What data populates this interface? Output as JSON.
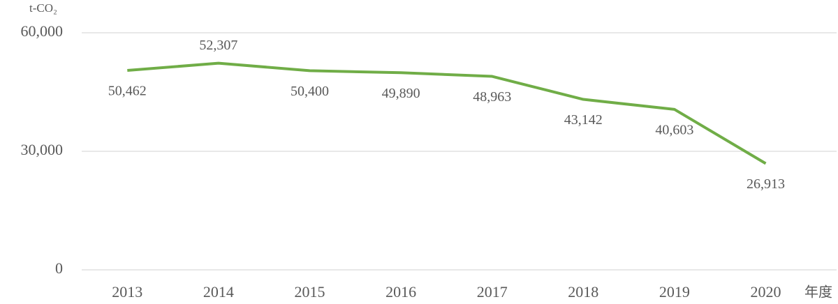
{
  "chart_data": {
    "type": "line",
    "y_axis_label": "t-CO₂",
    "x_axis_label": "年度",
    "categories": [
      "2013",
      "2014",
      "2015",
      "2016",
      "2017",
      "2018",
      "2019",
      "2020"
    ],
    "series": [
      {
        "color": "#70ad47",
        "values": [
          50462,
          52307,
          50400,
          49890,
          48963,
          43142,
          40603,
          26913
        ],
        "value_labels": [
          "50,462",
          "52,307",
          "50,400",
          "49,890",
          "48,963",
          "43,142",
          "40,603",
          "26,913"
        ]
      }
    ],
    "ylim": [
      0,
      60000
    ],
    "yticks": [
      0,
      {
        "value": 30000,
        "label": "30,000"
      },
      {
        "value": 60000,
        "label": "60,000"
      }
    ],
    "grid": true
  }
}
